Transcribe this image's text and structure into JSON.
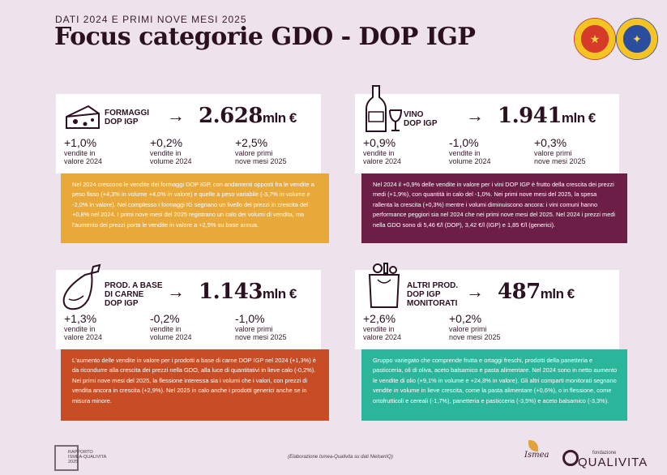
{
  "header": {
    "subtitle": "DATI 2024 E PRIMI NOVE MESI 2025",
    "title": "Focus categorie GDO - DOP IGP"
  },
  "seals": [
    {
      "name": "seal-dop",
      "icon": "dop-seal-icon",
      "color": "#d63b2a"
    },
    {
      "name": "seal-igp",
      "icon": "igp-seal-icon",
      "color": "#2b4d9e"
    }
  ],
  "cards": {
    "formaggi": {
      "category_line1": "FORMAGGI",
      "category_line2": "DOP IGP",
      "icon": "cheese-icon",
      "arrow": "→",
      "value": "2.628",
      "unit": "mln €",
      "stats": [
        {
          "value": "+1,0%",
          "label_1": "vendite in",
          "label_2": "valore 2024"
        },
        {
          "value": "+0,2%",
          "label_1": "vendite in",
          "label_2": "volume 2024"
        },
        {
          "value": "+2,5%",
          "label_1": "valore primi",
          "label_2": "nove mesi 2025"
        }
      ],
      "note": "Nel 2024 crescono le vendite dei formaggi DOP IGP, con andamenti opposti fra le vendite a peso fisso (+4,3% in volume +4,0% in valore) e quelle a peso variabile (-3,7% in volume e -2,0% in valore). Nel complesso i formaggi IG segnano un livello dei prezzi in crescita del +0,8% nel 2024. I primi nove mesi del 2025 registrano un calo dei volumi di vendita, ma l'aumento dei prezzi porta le vendite in valore a +2,5% su base annua.",
      "note_color": "#e9a83a"
    },
    "vino": {
      "category_line1": "VINO",
      "category_line2": "DOP IGP",
      "icon": "wine-bottle-glass-icon",
      "arrow": "→",
      "value": "1.941",
      "unit": "mln €",
      "stats": [
        {
          "value": "+0,9%",
          "label_1": "vendite in",
          "label_2": "valore 2024"
        },
        {
          "value": "-1,0%",
          "label_1": "vendite in",
          "label_2": "volume 2024"
        },
        {
          "value": "+0,3%",
          "label_1": "valore primi",
          "label_2": "nove mesi 2025"
        }
      ],
      "note": "Nel 2024 il +0,9% delle vendite in valore per i vini DOP IGP è frutto della crescita dei prezzi medi (+1,9%), con quantità in calo del -1,0%. Nei primi nove mesi del 2025, la spesa rallenta la crescita (+0,3%) mentre i volumi diminuiscono ancora: i vini comuni hanno performance peggiori sia nel 2024 che nei primi nove mesi del 2025. Nel 2024 i prezzi medi nella GDO sono di 5,46 €/l (DOP), 3,42 €/l (IGP) e 1,85 €/l (generici).",
      "note_color": "#6d1e47"
    },
    "carne": {
      "category_line1": "PROD. A BASE",
      "category_line2": "DI CARNE",
      "category_line3": "DOP IGP",
      "icon": "ham-leg-icon",
      "arrow": "→",
      "value": "1.143",
      "unit": "mln €",
      "stats": [
        {
          "value": "+1,3%",
          "label_1": "vendite in",
          "label_2": "valore 2024"
        },
        {
          "value": "-0,2%",
          "label_1": "vendite in",
          "label_2": "volume 2024"
        },
        {
          "value": "-1,0%",
          "label_1": "valore primi",
          "label_2": "nove mesi 2025"
        }
      ],
      "note": "L'aumento delle vendite in valore per i prodotti a base di carne DOP IGP nel 2024 (+1,3%) è da ricondurre alla crescita dei prezzi nella GDO, alla luce di quantitativi in lieve calo (-0,2%). Nei primi nove mesi del 2025, la flessione interessa sia i volumi che i valori, con prezzi di vendita ancora in crescita (+2,9%). Nel 2025 in calo anche i prodotti generici anche se in misura minore.",
      "note_color": "#c84d24"
    },
    "altri": {
      "category_line1": "ALTRI PROD.",
      "category_line2": "DOP IGP",
      "category_line3": "MONITORATI",
      "icon": "grocery-bag-icon",
      "arrow": "→",
      "value": "487",
      "unit": "mln €",
      "stats": [
        {
          "value": "+2,6%",
          "label_1": "vendite in",
          "label_2": "valore 2024"
        },
        {
          "value": "+0,2%",
          "label_1": "valore primi",
          "label_2": "nove mesi 2025"
        }
      ],
      "note": "Gruppo variegato che comprende frutta e ortaggi freschi, prodotti della panetteria e pasticceria, oli di oliva, aceto balsamico e pasta alimentare. Nel 2024 sono in netto aumento le vendite di olio (+9,1% in volume e +24,8% in valore). Gli altri comparti monitorati segnano vendite in volume in lieve crescita, come la pasta alimentare (+0,6%), o in flessione, come ortofrutticoli e cereali (-1,7%), panetteria e pasticceria (-3,5%) e aceto balsamico (-3,3%).",
      "note_color": "#2bb59b"
    }
  },
  "footer": {
    "report_logo": "RAPPORTO ISMEA-QUALIVITA 2025",
    "report_line1": "RAPPORTO",
    "report_line2": "ISMEA-QUALIVITA",
    "report_line3": "2025",
    "credit": "(Elaborazione Ismea-Qualivita su dati NielsenIQ)",
    "ismea": "Ismea",
    "fondazione": "fondazione",
    "qualivita": "QUALIVITA"
  }
}
